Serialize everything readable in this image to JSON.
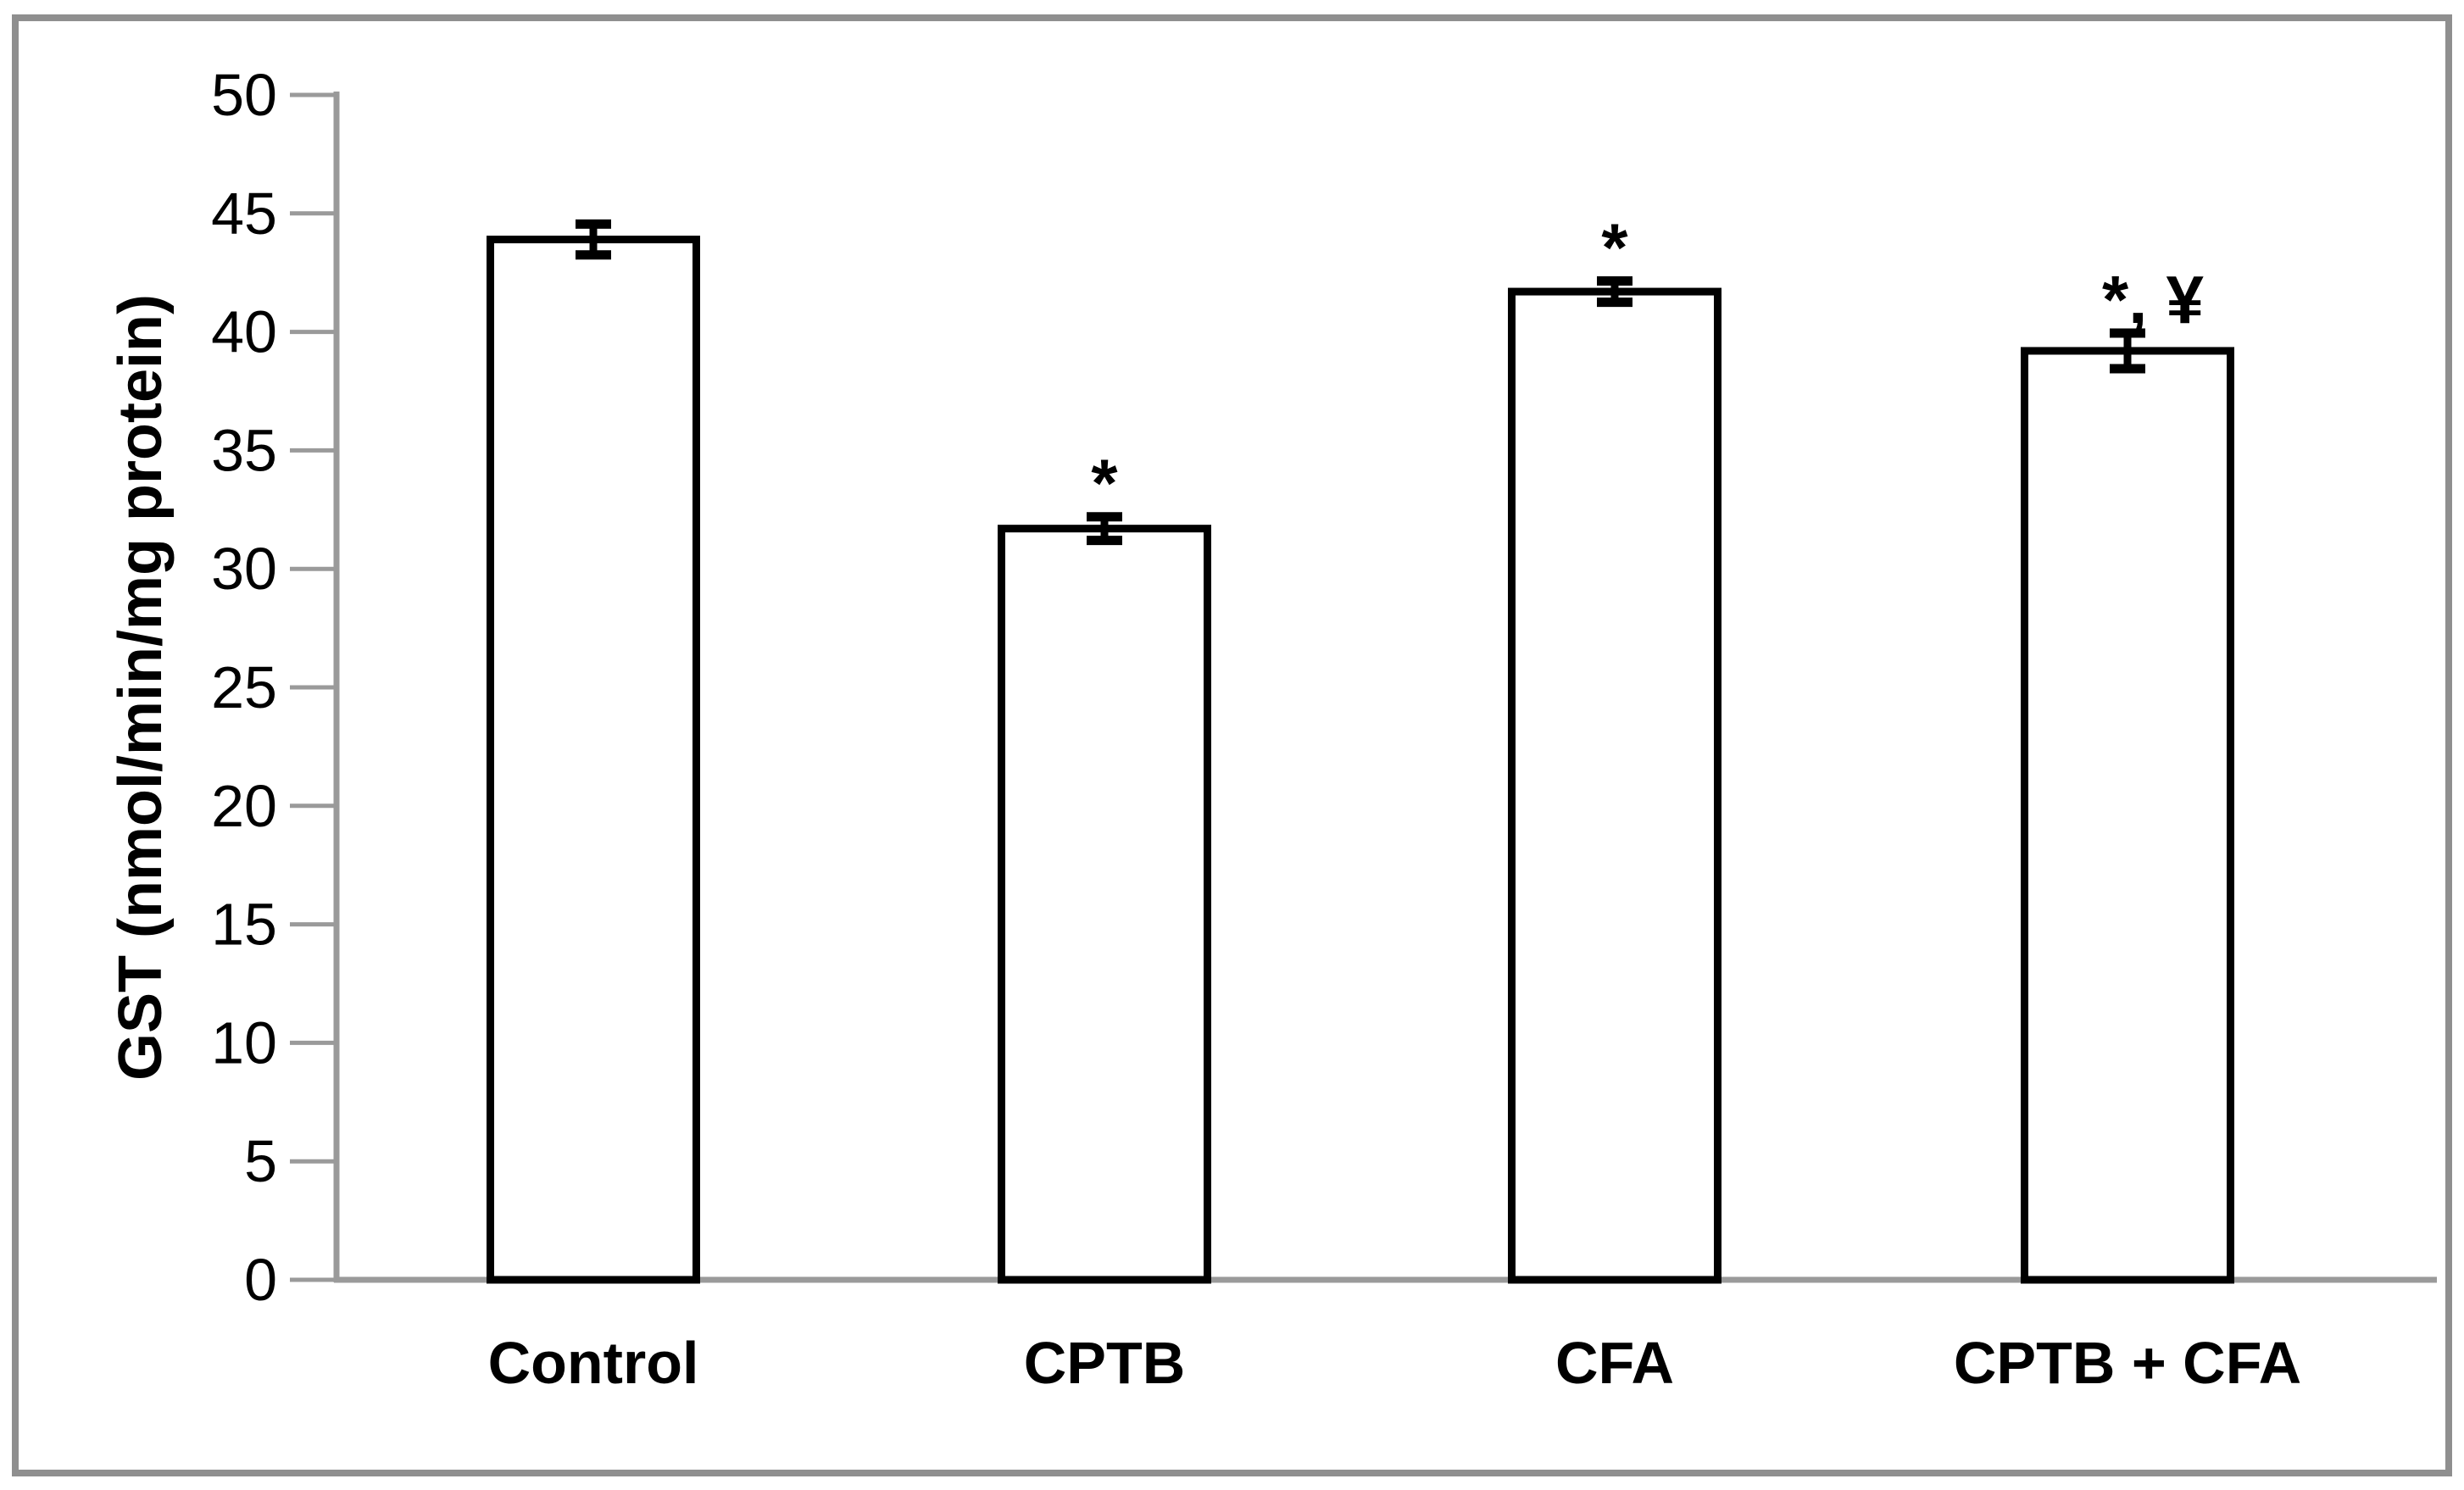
{
  "chart_data": {
    "type": "bar",
    "title": "",
    "xlabel": "",
    "ylabel": "GST (nmol/min/mg protein)",
    "categories": [
      "Control",
      "CPTB",
      "CFA",
      "CPTB + CFA"
    ],
    "values": [
      43.9,
      31.7,
      41.7,
      39.2
    ],
    "errors": [
      0.65,
      0.5,
      0.45,
      0.75
    ],
    "annotations": [
      "",
      "*",
      "*",
      "*, ¥"
    ],
    "ylim": [
      0,
      50
    ],
    "yticks": [
      0,
      5,
      10,
      15,
      20,
      25,
      30,
      35,
      40,
      45,
      50
    ],
    "grid": false,
    "legend": false,
    "bar_fill": "#ffffff",
    "bar_stroke": "#000000",
    "error_color": "#000000",
    "axis_color": "#9a9a9a",
    "frame_color": "#8f8f8f",
    "text_color": "#000000",
    "background": "#ffffff"
  }
}
